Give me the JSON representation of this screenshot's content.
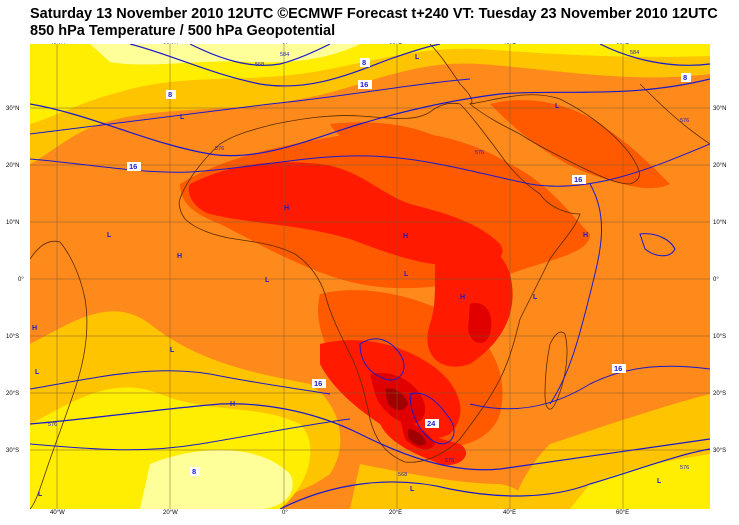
{
  "header": {
    "title_line1": "Saturday 13 November 2010 12UTC ©ECMWF Forecast t+240 VT: Tuesday 23 November 2010 12UTC",
    "title_line2": "850 hPa Temperature / 500 hPa Geopotential"
  },
  "axes": {
    "longitude_ticks": [
      "40°W",
      "20°W",
      "0°",
      "20°E",
      "40°E",
      "60°E"
    ],
    "latitude_ticks": [
      "30°N",
      "20°N",
      "10°N",
      "0°",
      "10°S",
      "20°S",
      "30°S"
    ]
  },
  "pressure_centres": {
    "highs": [
      "H",
      "H",
      "H",
      "H",
      "H",
      "H",
      "H"
    ],
    "lows": [
      "L",
      "L",
      "L",
      "L",
      "L",
      "L",
      "L",
      "L",
      "L",
      "L",
      "L",
      "L"
    ]
  },
  "contour_labels": {
    "temperature": [
      "16",
      "16",
      "16",
      "16",
      "16",
      "8",
      "8",
      "8",
      "8",
      "24"
    ],
    "geopotential": [
      "576",
      "576",
      "576",
      "576",
      "576",
      "568",
      "568",
      "584",
      "584",
      "576"
    ]
  },
  "colors": {
    "temp_below_8": "#ffff99",
    "temp_8_12": "#ffee00",
    "temp_12_16": "#ffc400",
    "temp_16_20": "#ff8a1c",
    "temp_20_24": "#ff5a00",
    "temp_24_28": "#ff1a00",
    "temp_28_32": "#e00000",
    "temp_above_32": "#a00000",
    "contours": "#1a1acc",
    "coastlines": "#5a2a00"
  }
}
